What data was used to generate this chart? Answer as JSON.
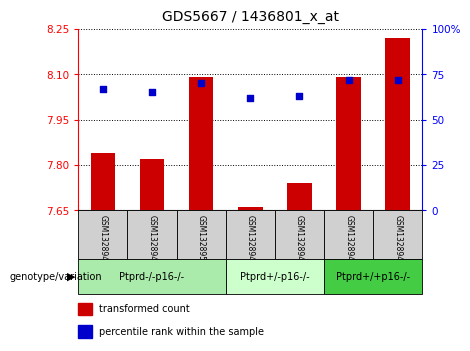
{
  "title": "GDS5667 / 1436801_x_at",
  "samples": [
    "GSM1328948",
    "GSM1328949",
    "GSM1328951",
    "GSM1328944",
    "GSM1328946",
    "GSM1328942",
    "GSM1328943"
  ],
  "red_values": [
    7.84,
    7.82,
    8.09,
    7.66,
    7.74,
    8.09,
    8.22
  ],
  "blue_values": [
    67,
    65,
    70,
    62,
    63,
    72,
    72
  ],
  "ylim_left": [
    7.65,
    8.25
  ],
  "ylim_right": [
    0,
    100
  ],
  "yticks_left": [
    7.65,
    7.8,
    7.95,
    8.1,
    8.25
  ],
  "yticks_right": [
    0,
    25,
    50,
    75,
    100
  ],
  "ytick_labels_left": [
    "7.65",
    "7.80",
    "7.95",
    "8.10",
    "8.25"
  ],
  "ytick_labels_right": [
    "0",
    "25",
    "50",
    "75",
    "100%"
  ],
  "groups": [
    {
      "label": "Ptprd-/-p16-/-",
      "indices": [
        0,
        1,
        2
      ],
      "color": "#aaeaaa"
    },
    {
      "label": "Ptprd+/-p16-/-",
      "indices": [
        3,
        4
      ],
      "color": "#ccffcc"
    },
    {
      "label": "Ptprd+/+p16-/-",
      "indices": [
        5,
        6
      ],
      "color": "#44cc44"
    }
  ],
  "bar_color": "#cc0000",
  "dot_color": "#0000cc",
  "bar_width": 0.5,
  "dot_size": 25,
  "legend_red_label": "transformed count",
  "legend_blue_label": "percentile rank within the sample",
  "genotype_label": "genotype/variation",
  "title_fontsize": 10,
  "tick_fontsize": 7.5,
  "sample_fontsize": 5.5,
  "group_fontsize": 7,
  "legend_fontsize": 7
}
